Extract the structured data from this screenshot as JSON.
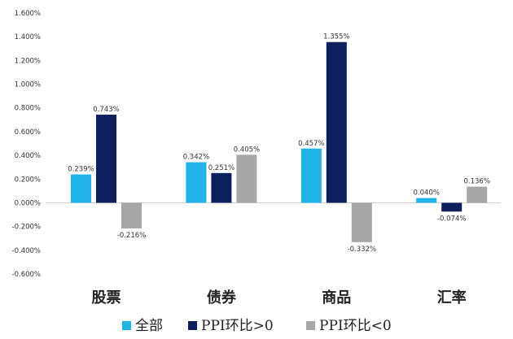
{
  "chart_data": {
    "type": "bar",
    "categories": [
      "股票",
      "债券",
      "商品",
      "汇率"
    ],
    "series": [
      {
        "name": "全部",
        "color": "#1fb3e8",
        "values": [
          0.239,
          0.342,
          0.457,
          0.04
        ],
        "labels": [
          "0.239%",
          "0.342%",
          "0.457%",
          "0.040%"
        ]
      },
      {
        "name": "PPI环比>0",
        "color": "#0d1f5c",
        "values": [
          0.743,
          0.251,
          1.355,
          -0.074
        ],
        "labels": [
          "0.743%",
          "0.251%",
          "1.355%",
          "-0.074%"
        ]
      },
      {
        "name": "PPI环比<0",
        "color": "#a6a6a6",
        "values": [
          -0.216,
          0.405,
          -0.332,
          0.136
        ],
        "labels": [
          "-0.216%",
          "0.405%",
          "-0.332%",
          "0.136%"
        ]
      }
    ],
    "ylim": [
      -0.6,
      1.6
    ],
    "yticks": [
      1.6,
      1.4,
      1.2,
      1.0,
      0.8,
      0.6,
      0.4,
      0.2,
      0.0,
      -0.2,
      -0.4,
      -0.6
    ],
    "ytick_labels": [
      "1.600%",
      "1.400%",
      "1.200%",
      "1.000%",
      "0.800%",
      "0.600%",
      "0.400%",
      "0.200%",
      "0.000%",
      "-0.200%",
      "-0.400%",
      "-0.600%"
    ],
    "grid": false,
    "legend_position": "bottom"
  }
}
